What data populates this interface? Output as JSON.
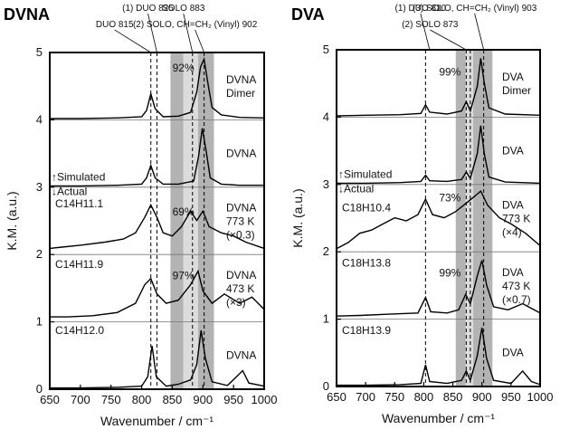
{
  "chart_data": [
    {
      "panel_title": "DVNA",
      "type": "line",
      "xlabel": "Wavenumber / cm⁻¹",
      "ylabel": "K.M. (a.u.)",
      "xlim": [
        650,
        1000
      ],
      "ylim": [
        0,
        5
      ],
      "xticks": [
        "650",
        "700",
        "750",
        "800",
        "850",
        "900",
        "950",
        "1000"
      ],
      "yticks": [
        "0",
        "1",
        "2",
        "3",
        "4",
        "5"
      ],
      "peak_annotations": [
        {
          "text": "(1) DUO 825",
          "x": 825
        },
        {
          "text": "DUO 815",
          "x": 815
        },
        {
          "text": "SOLO 883",
          "x": 883
        },
        {
          "text": "(2) SOLO, CH=CH₂ (Vinyl) 902",
          "x": 902
        }
      ],
      "dashed_lines_x": [
        815,
        825,
        883,
        902
      ],
      "highlight_bands": [
        [
          847,
          868
        ],
        [
          892,
          918
        ]
      ],
      "light_bands": [
        [
          868,
          892
        ]
      ],
      "simulated_label": "↑Simulated",
      "actual_label": "↓Actual",
      "series": [
        {
          "name": "DVNA Dimer",
          "offset": 4.0,
          "label_lines": [
            "DVNA",
            "Dimer"
          ],
          "points": [
            [
              650,
              0.02
            ],
            [
              700,
              0.02
            ],
            [
              760,
              0.03
            ],
            [
              800,
              0.05
            ],
            [
              808,
              0.15
            ],
            [
              815,
              0.42
            ],
            [
              822,
              0.18
            ],
            [
              835,
              0.05
            ],
            [
              860,
              0.06
            ],
            [
              880,
              0.12
            ],
            [
              890,
              0.45
            ],
            [
              896,
              0.85
            ],
            [
              902,
              0.98
            ],
            [
              908,
              0.6
            ],
            [
              915,
              0.2
            ],
            [
              930,
              0.08
            ],
            [
              960,
              0.04
            ],
            [
              1000,
              0.03
            ]
          ]
        },
        {
          "name": "DVNA simulated",
          "offset": 3.0,
          "label_lines": [
            "DVNA"
          ],
          "points": [
            [
              650,
              0.02
            ],
            [
              700,
              0.02
            ],
            [
              760,
              0.03
            ],
            [
              800,
              0.05
            ],
            [
              808,
              0.15
            ],
            [
              815,
              0.35
            ],
            [
              822,
              0.15
            ],
            [
              835,
              0.05
            ],
            [
              860,
              0.05
            ],
            [
              885,
              0.1
            ],
            [
              893,
              0.5
            ],
            [
              899,
              0.95
            ],
            [
              905,
              0.6
            ],
            [
              912,
              0.15
            ],
            [
              930,
              0.05
            ],
            [
              960,
              0.03
            ],
            [
              1000,
              0.03
            ]
          ]
        },
        {
          "name": "C14H11.1",
          "offset": 2.0,
          "label_lines": [
            "DVNA",
            "773 K",
            "(×0.3)"
          ],
          "points": [
            [
              650,
              0.1
            ],
            [
              670,
              0.12
            ],
            [
              700,
              0.15
            ],
            [
              740,
              0.2
            ],
            [
              770,
              0.25
            ],
            [
              790,
              0.35
            ],
            [
              805,
              0.6
            ],
            [
              815,
              0.8
            ],
            [
              825,
              0.6
            ],
            [
              835,
              0.35
            ],
            [
              850,
              0.3
            ],
            [
              865,
              0.45
            ],
            [
              880,
              0.7
            ],
            [
              890,
              0.55
            ],
            [
              900,
              0.7
            ],
            [
              910,
              0.45
            ],
            [
              930,
              0.35
            ],
            [
              950,
              0.3
            ],
            [
              970,
              0.2
            ],
            [
              1000,
              0.1
            ]
          ]
        },
        {
          "name": "C14H11.9",
          "offset": 1.0,
          "label_lines": [
            "DVNA",
            "473 K",
            "(×3)"
          ],
          "points": [
            [
              650,
              0.08
            ],
            [
              680,
              0.08
            ],
            [
              720,
              0.1
            ],
            [
              760,
              0.15
            ],
            [
              790,
              0.3
            ],
            [
              805,
              0.6
            ],
            [
              815,
              0.7
            ],
            [
              825,
              0.45
            ],
            [
              840,
              0.3
            ],
            [
              860,
              0.35
            ],
            [
              880,
              0.6
            ],
            [
              892,
              0.82
            ],
            [
              900,
              0.5
            ],
            [
              915,
              0.3
            ],
            [
              935,
              0.45
            ],
            [
              960,
              0.3
            ],
            [
              980,
              0.4
            ],
            [
              1000,
              0.2
            ]
          ]
        },
        {
          "name": "C14H12.0",
          "offset": 0.0,
          "label_lines": [
            "DVNA"
          ],
          "points": [
            [
              650,
              0.02
            ],
            [
              700,
              0.02
            ],
            [
              760,
              0.03
            ],
            [
              800,
              0.05
            ],
            [
              810,
              0.2
            ],
            [
              817,
              0.7
            ],
            [
              824,
              0.2
            ],
            [
              840,
              0.05
            ],
            [
              860,
              0.08
            ],
            [
              880,
              0.15
            ],
            [
              890,
              0.4
            ],
            [
              897,
              0.95
            ],
            [
              904,
              0.5
            ],
            [
              915,
              0.12
            ],
            [
              940,
              0.06
            ],
            [
              965,
              0.3
            ],
            [
              975,
              0.1
            ],
            [
              1000,
              0.05
            ]
          ]
        }
      ],
      "sample_labels": [
        {
          "text": "C14H11.1",
          "y": 2.7
        },
        {
          "text": "C14H11.9",
          "y": 1.8
        },
        {
          "text": "C14H12.0",
          "y": 0.82
        }
      ],
      "percent_labels": [
        {
          "text": "92%",
          "x": 868,
          "y": 4.72
        },
        {
          "text": "69%",
          "x": 868,
          "y": 2.58
        },
        {
          "text": "97%",
          "x": 868,
          "y": 1.63
        }
      ]
    },
    {
      "panel_title": "DVA",
      "type": "line",
      "xlabel": "Wavenumber / cm⁻¹",
      "ylabel": "K.M. (a.u.)",
      "xlim": [
        650,
        1000
      ],
      "ylim": [
        0,
        5
      ],
      "xticks": [
        "650",
        "700",
        "750",
        "800",
        "850",
        "900",
        "950",
        "1000"
      ],
      "yticks": [
        "0",
        "1",
        "2",
        "3",
        "4",
        "5"
      ],
      "peak_annotations": [
        {
          "text": "(1) DUO 810",
          "x": 810
        },
        {
          "text": "(2) SOLO 873",
          "x": 873
        },
        {
          "text": "(3) SOLO, CH=CH₂ (Vinyl) 903",
          "x": 903
        }
      ],
      "dashed_lines_x": [
        803,
        873,
        880,
        903
      ],
      "highlight_bands": [
        [
          855,
          872
        ],
        [
          885,
          918
        ]
      ],
      "light_bands": [
        [
          872,
          885
        ]
      ],
      "simulated_label": "↑Simulated",
      "actual_label": "↓Actual",
      "series": [
        {
          "name": "DVA Dimer",
          "offset": 4.0,
          "label_lines": [
            "DVA",
            "Dimer"
          ],
          "points": [
            [
              650,
              0.02
            ],
            [
              700,
              0.03
            ],
            [
              760,
              0.04
            ],
            [
              795,
              0.06
            ],
            [
              803,
              0.2
            ],
            [
              810,
              0.08
            ],
            [
              840,
              0.05
            ],
            [
              865,
              0.1
            ],
            [
              873,
              0.25
            ],
            [
              880,
              0.1
            ],
            [
              892,
              0.5
            ],
            [
              898,
              0.95
            ],
            [
              904,
              0.55
            ],
            [
              912,
              0.15
            ],
            [
              940,
              0.05
            ],
            [
              1000,
              0.03
            ]
          ]
        },
        {
          "name": "DVA simulated",
          "offset": 3.0,
          "label_lines": [
            "DVA"
          ],
          "points": [
            [
              650,
              0.02
            ],
            [
              700,
              0.02
            ],
            [
              760,
              0.03
            ],
            [
              795,
              0.05
            ],
            [
              803,
              0.15
            ],
            [
              810,
              0.06
            ],
            [
              840,
              0.05
            ],
            [
              865,
              0.08
            ],
            [
              873,
              0.2
            ],
            [
              880,
              0.1
            ],
            [
              892,
              0.5
            ],
            [
              898,
              0.95
            ],
            [
              904,
              0.5
            ],
            [
              912,
              0.12
            ],
            [
              940,
              0.04
            ],
            [
              1000,
              0.02
            ]
          ]
        },
        {
          "name": "C18H10.4",
          "offset": 2.0,
          "label_lines": [
            "DVA",
            "773 K",
            "(×4)"
          ],
          "points": [
            [
              650,
              0.05
            ],
            [
              670,
              0.15
            ],
            [
              690,
              0.3
            ],
            [
              710,
              0.35
            ],
            [
              730,
              0.45
            ],
            [
              750,
              0.55
            ],
            [
              770,
              0.5
            ],
            [
              790,
              0.6
            ],
            [
              803,
              0.85
            ],
            [
              815,
              0.6
            ],
            [
              835,
              0.55
            ],
            [
              855,
              0.65
            ],
            [
              875,
              0.8
            ],
            [
              888,
              0.9
            ],
            [
              898,
              0.98
            ],
            [
              910,
              0.75
            ],
            [
              930,
              0.55
            ],
            [
              950,
              0.45
            ],
            [
              975,
              0.3
            ],
            [
              1000,
              0.1
            ]
          ]
        },
        {
          "name": "C18H13.8",
          "offset": 1.0,
          "label_lines": [
            "DVA",
            "473 K",
            "(×0.7)"
          ],
          "points": [
            [
              650,
              0.05
            ],
            [
              690,
              0.06
            ],
            [
              740,
              0.08
            ],
            [
              790,
              0.1
            ],
            [
              803,
              0.35
            ],
            [
              812,
              0.12
            ],
            [
              840,
              0.1
            ],
            [
              860,
              0.15
            ],
            [
              872,
              0.4
            ],
            [
              880,
              0.25
            ],
            [
              892,
              0.7
            ],
            [
              900,
              0.95
            ],
            [
              908,
              0.55
            ],
            [
              920,
              0.2
            ],
            [
              945,
              0.15
            ],
            [
              970,
              0.25
            ],
            [
              1000,
              0.1
            ]
          ]
        },
        {
          "name": "C18H13.9",
          "offset": 0.0,
          "label_lines": [
            "DVA"
          ],
          "points": [
            [
              650,
              0.02
            ],
            [
              700,
              0.02
            ],
            [
              760,
              0.03
            ],
            [
              795,
              0.05
            ],
            [
              803,
              0.35
            ],
            [
              810,
              0.08
            ],
            [
              840,
              0.05
            ],
            [
              865,
              0.1
            ],
            [
              873,
              0.25
            ],
            [
              880,
              0.1
            ],
            [
              892,
              0.5
            ],
            [
              900,
              0.95
            ],
            [
              908,
              0.45
            ],
            [
              920,
              0.1
            ],
            [
              950,
              0.05
            ],
            [
              970,
              0.25
            ],
            [
              985,
              0.08
            ],
            [
              1000,
              0.03
            ]
          ]
        }
      ],
      "sample_labels": [
        {
          "text": "C18H10.4",
          "y": 2.6
        },
        {
          "text": "C18H13.8",
          "y": 1.78
        },
        {
          "text": "C18H13.9",
          "y": 0.78
        }
      ],
      "percent_labels": [
        {
          "text": "99%",
          "x": 845,
          "y": 4.62
        },
        {
          "text": "73%",
          "x": 845,
          "y": 2.75
        },
        {
          "text": "99%",
          "x": 845,
          "y": 1.63
        }
      ]
    }
  ]
}
